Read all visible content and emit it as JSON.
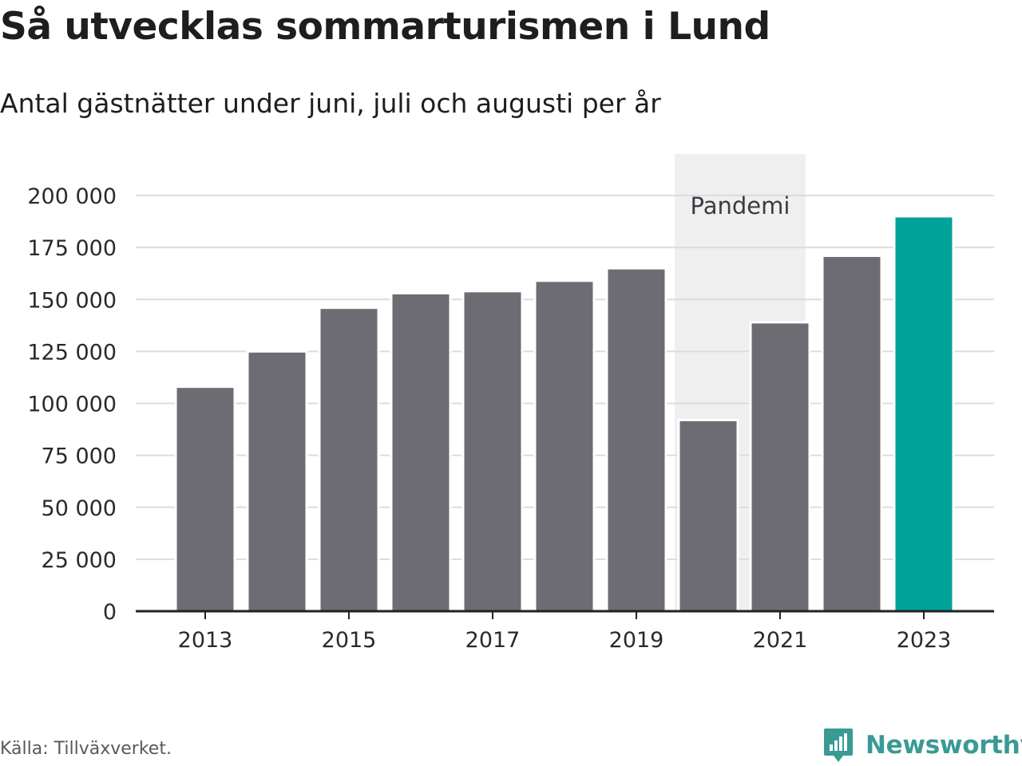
{
  "header": {
    "title": "Så utvecklas sommarturismen i Lund",
    "subtitle": "Antal gästnätter under juni, juli och augusti per år"
  },
  "footer": {
    "source": "Källa: Tillväxverket.",
    "brand": "Newsworthy",
    "brand_icon": "newsworthy-logo-icon",
    "brand_color": "#3a9a94"
  },
  "chart_data": {
    "type": "bar",
    "title": "Så utvecklas sommarturismen i Lund",
    "subtitle": "Antal gästnätter under juni, juli och augusti per år",
    "xlabel": "",
    "ylabel": "",
    "categories": [
      "2013",
      "2014",
      "2015",
      "2016",
      "2017",
      "2018",
      "2019",
      "2020",
      "2021",
      "2022",
      "2023"
    ],
    "values": [
      108000,
      125000,
      146000,
      153000,
      154000,
      159000,
      165000,
      92000,
      139000,
      171000,
      190000
    ],
    "ylim": [
      0,
      200000
    ],
    "yticks": [
      0,
      25000,
      50000,
      75000,
      100000,
      125000,
      150000,
      175000,
      200000
    ],
    "ytick_labels": [
      "0",
      "25 000",
      "50 000",
      "75 000",
      "100 000",
      "125 000",
      "150 000",
      "175 000",
      "200 000"
    ],
    "xtick_labels": [
      "2013",
      "2015",
      "2017",
      "2019",
      "2021",
      "2023"
    ],
    "grid": true,
    "colors": {
      "bar": "#6d6c73",
      "highlight": "#00a29a",
      "highlight_category": "2023",
      "grid": "#dcdcdc",
      "axis": "#222222",
      "band": "#efefef"
    },
    "annotations": [
      {
        "label": "Pandemi",
        "type": "band",
        "from": "2020",
        "to": "2021"
      }
    ]
  }
}
